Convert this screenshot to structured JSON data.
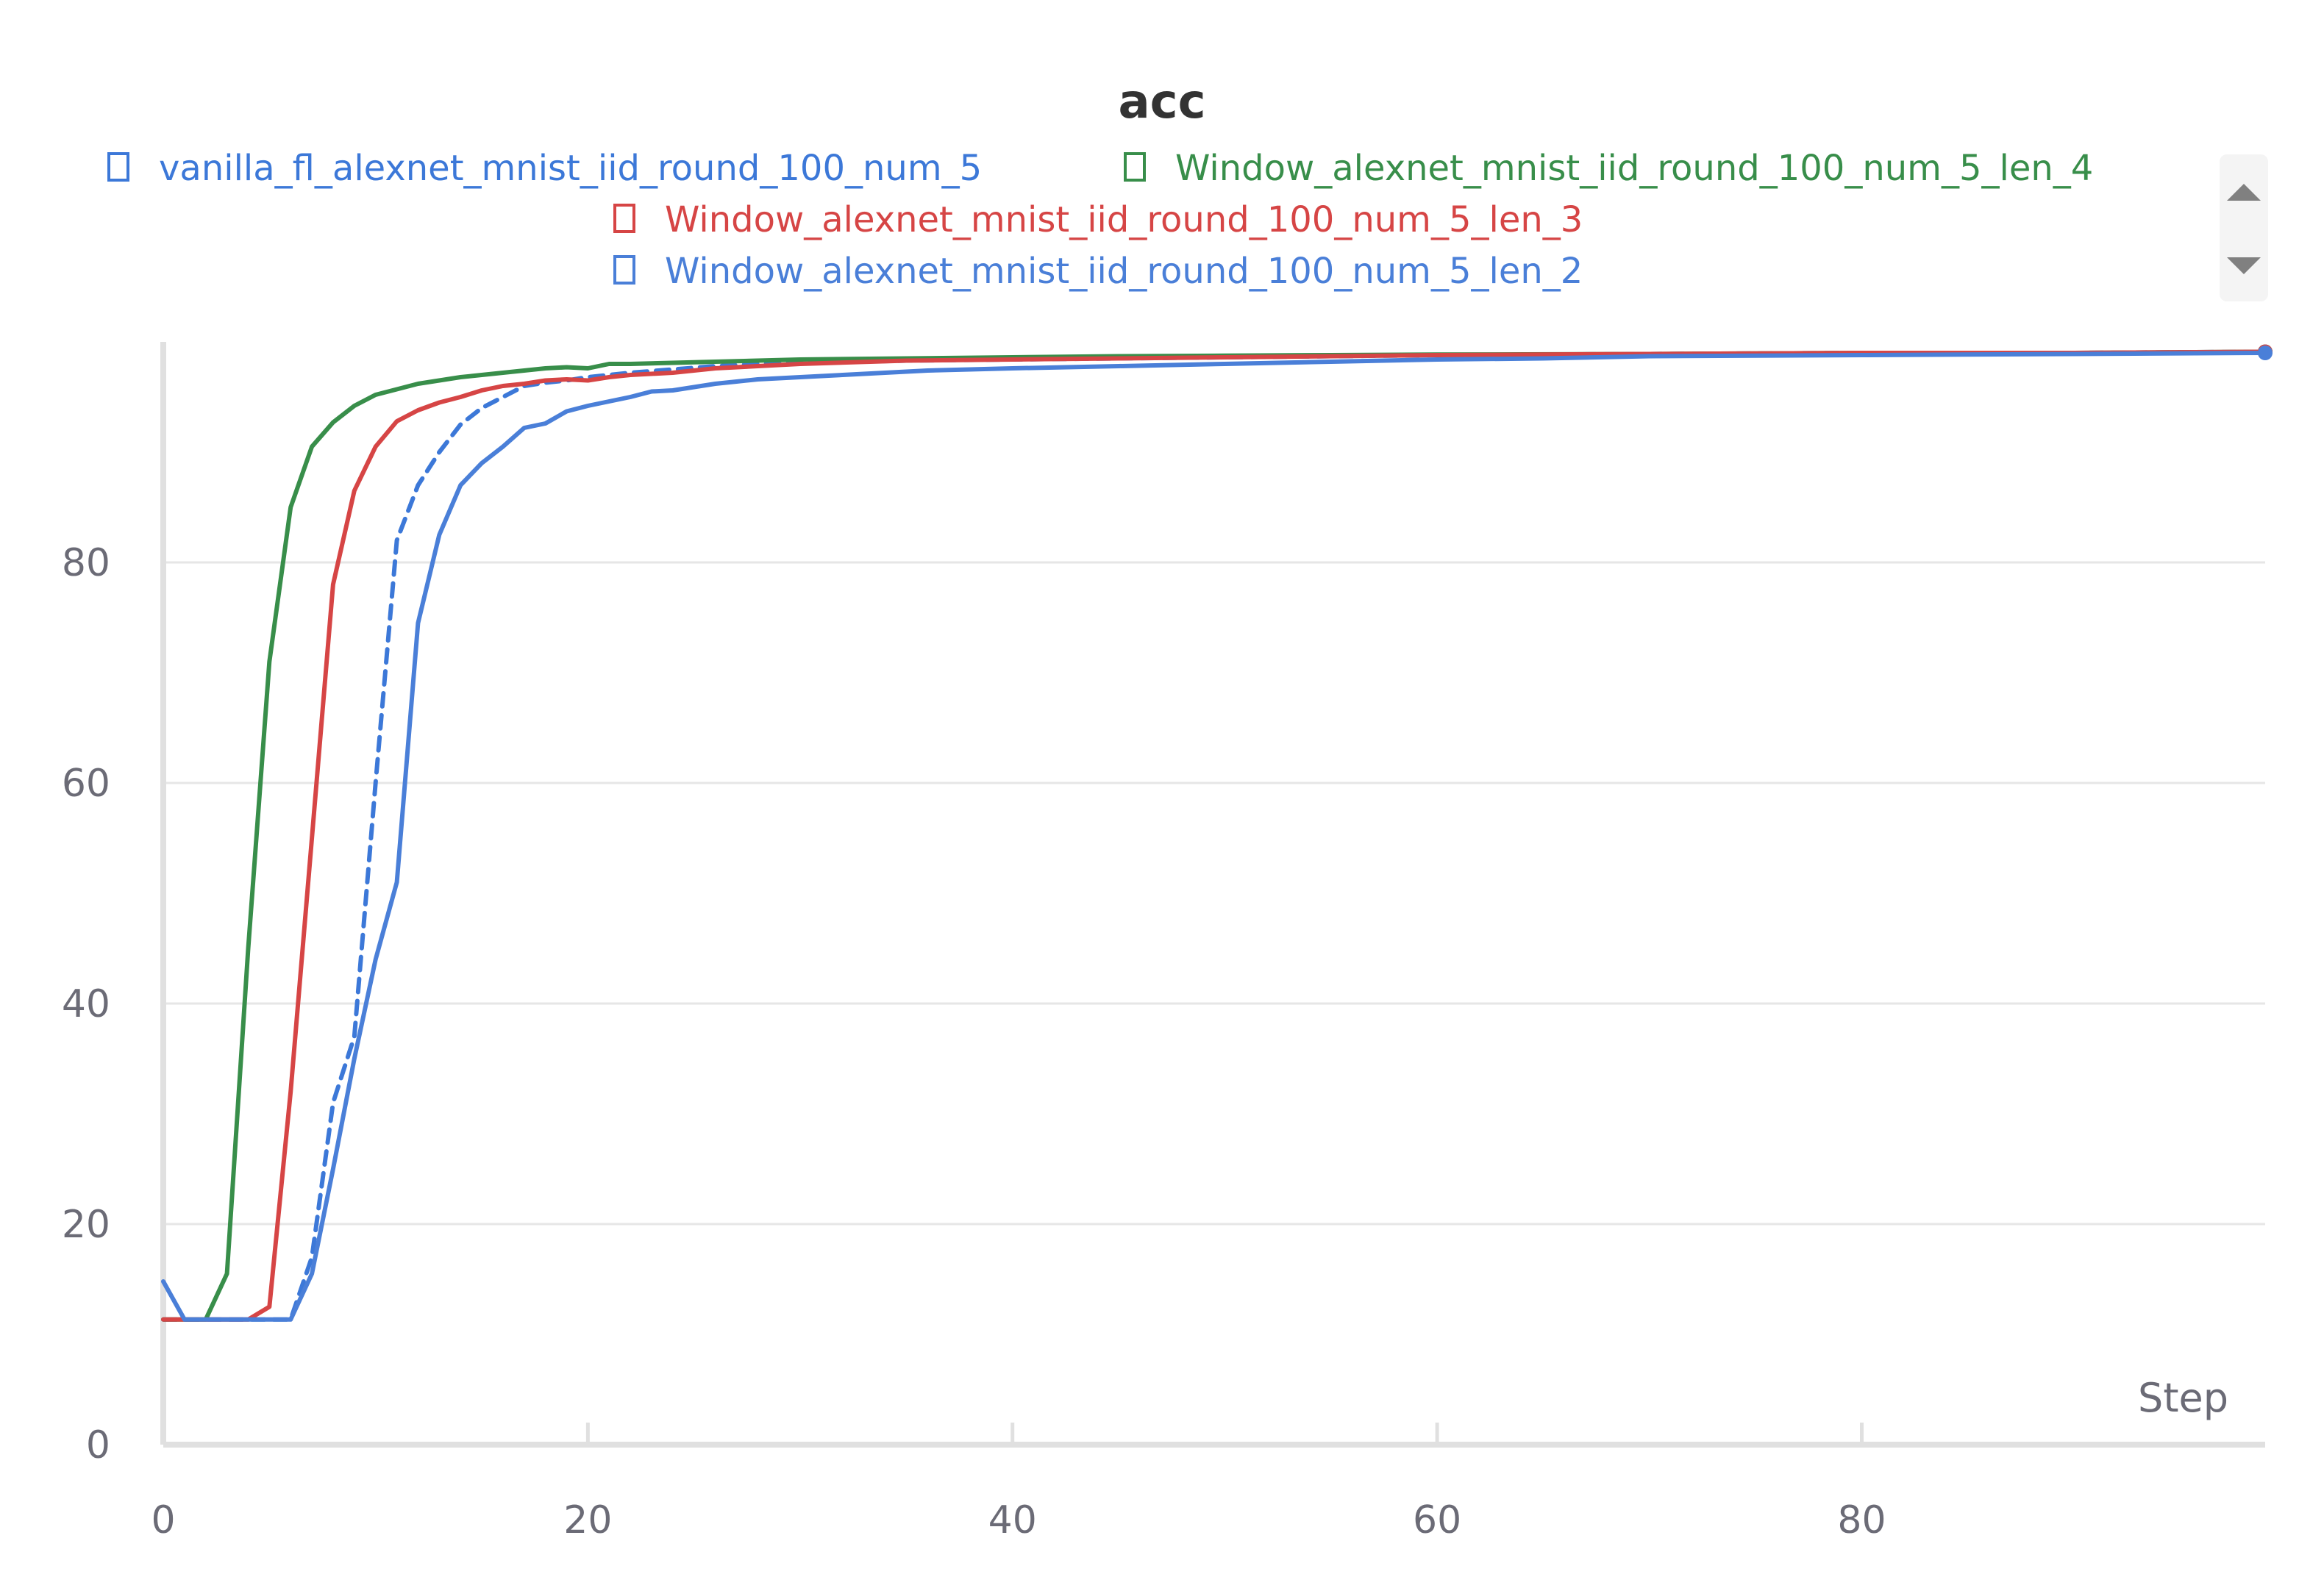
{
  "chart_data": {
    "type": "line",
    "title": "acc",
    "xlabel": "Step",
    "ylabel": "",
    "xlim": [
      0,
      99
    ],
    "ylim": [
      0,
      100
    ],
    "xticks": [
      0,
      20,
      40,
      60,
      80
    ],
    "yticks": [
      0,
      20,
      40,
      60,
      80
    ],
    "grid": true,
    "legend_position": "top",
    "series": [
      {
        "name": "vanilla_fl_alexnet_mnist_iid_round_100_num_5",
        "color": "#3c78d8",
        "dash": "dashed",
        "x": [
          0,
          1,
          2,
          3,
          4,
          5,
          6,
          7,
          8,
          9,
          10,
          11,
          12,
          13,
          14,
          15,
          16,
          17,
          18,
          19,
          20,
          22,
          24,
          26,
          28,
          30,
          35,
          40,
          45,
          50,
          55,
          60,
          70,
          80,
          90,
          99
        ],
        "y": [
          11.35,
          11.35,
          11.35,
          11.35,
          11.35,
          11.35,
          11.35,
          17,
          31,
          37,
          60,
          82,
          87,
          90,
          92.5,
          94,
          95,
          96,
          96.3,
          96.5,
          96.8,
          97.2,
          97.5,
          97.8,
          98,
          98.1,
          98.3,
          98.4,
          98.5,
          98.6,
          98.7,
          98.8,
          98.9,
          99,
          99,
          99.1
        ]
      },
      {
        "name": "Window_alexnet_mnist_iid_round_100_num_5_len_4",
        "color": "#388e4a",
        "dash": "solid",
        "x": [
          0,
          1,
          2,
          3,
          4,
          5,
          6,
          7,
          8,
          9,
          10,
          11,
          12,
          13,
          14,
          15,
          16,
          17,
          18,
          19,
          20,
          21,
          22,
          24,
          26,
          28,
          30,
          35,
          40,
          45,
          50,
          55,
          60,
          70,
          80,
          90,
          99
        ],
        "y": [
          11.35,
          11.35,
          11.35,
          15.5,
          45,
          71,
          85,
          90.5,
          92.7,
          94.2,
          95.2,
          95.7,
          96.2,
          96.5,
          96.8,
          97,
          97.2,
          97.4,
          97.6,
          97.7,
          97.6,
          98,
          98,
          98.1,
          98.2,
          98.3,
          98.4,
          98.5,
          98.6,
          98.7,
          98.75,
          98.8,
          98.85,
          98.9,
          99,
          99,
          99.1
        ]
      },
      {
        "name": "Window_alexnet_mnist_iid_round_100_num_5_len_3",
        "color": "#d64545",
        "dash": "solid",
        "x": [
          0,
          1,
          2,
          3,
          4,
          5,
          6,
          7,
          8,
          9,
          10,
          11,
          12,
          13,
          14,
          15,
          16,
          17,
          18,
          19,
          20,
          21,
          22,
          24,
          26,
          28,
          30,
          35,
          40,
          45,
          50,
          55,
          60,
          70,
          80,
          90,
          99
        ],
        "y": [
          11.35,
          11.35,
          11.35,
          11.35,
          11.35,
          12.5,
          32,
          55,
          78,
          86.5,
          90.5,
          92.8,
          93.8,
          94.5,
          95,
          95.6,
          96,
          96.2,
          96.5,
          96.6,
          96.5,
          96.8,
          97,
          97.2,
          97.6,
          97.8,
          98,
          98.3,
          98.4,
          98.5,
          98.6,
          98.7,
          98.8,
          98.9,
          99,
          99,
          99.1
        ]
      },
      {
        "name": "Window_alexnet_mnist_iid_round_100_num_5_len_2",
        "color": "#4a7fd8",
        "dash": "solid",
        "x": [
          0,
          1,
          2,
          3,
          4,
          5,
          6,
          7,
          8,
          9,
          10,
          11,
          12,
          13,
          14,
          15,
          16,
          17,
          18,
          19,
          20,
          21,
          22,
          23,
          24,
          25,
          26,
          27,
          28,
          30,
          32,
          34,
          36,
          38,
          40,
          45,
          50,
          55,
          60,
          65,
          70,
          80,
          90,
          99
        ],
        "y": [
          14.8,
          11.35,
          11.35,
          11.35,
          11.35,
          11.35,
          11.35,
          15.5,
          25,
          35,
          44,
          51,
          74.5,
          82.5,
          87,
          89,
          90.5,
          92.2,
          92.6,
          93.7,
          94.2,
          94.6,
          95,
          95.5,
          95.6,
          95.9,
          96.2,
          96.4,
          96.6,
          96.8,
          97,
          97.2,
          97.4,
          97.5,
          97.6,
          97.8,
          98,
          98.2,
          98.4,
          98.5,
          98.7,
          98.8,
          98.9,
          99
        ]
      }
    ]
  }
}
